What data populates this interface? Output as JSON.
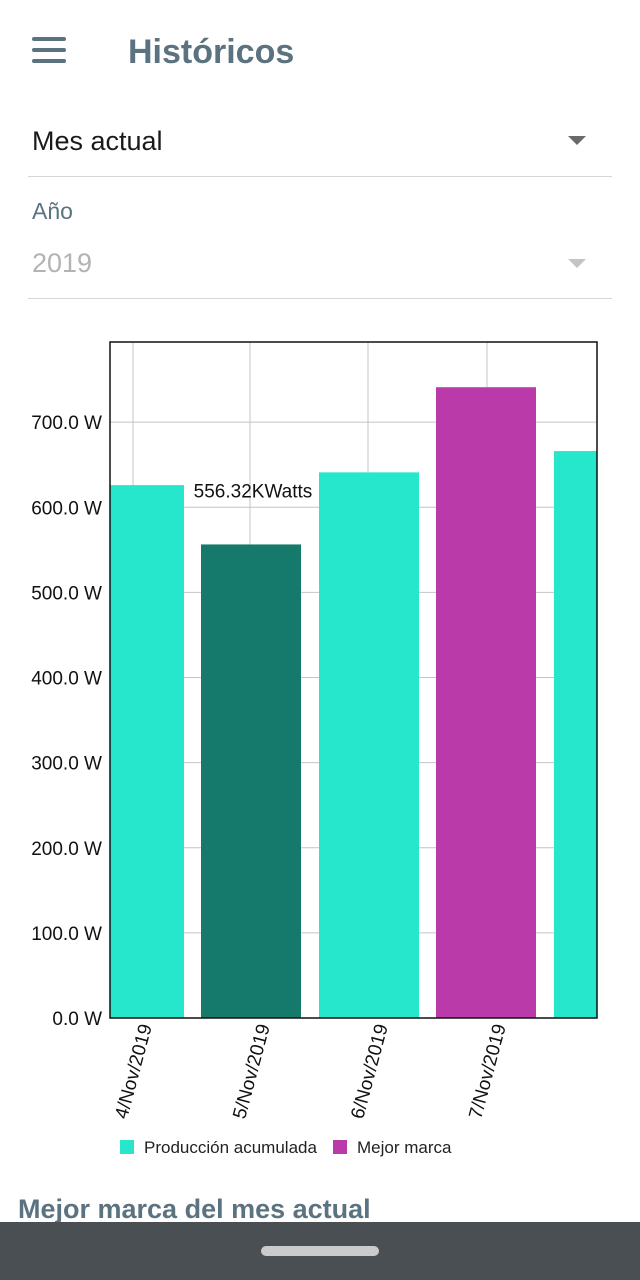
{
  "header": {
    "title": "Históricos",
    "menu_icon": "hamburger-menu-icon"
  },
  "filters": {
    "period": {
      "value": "Mes actual"
    },
    "year": {
      "label": "Año",
      "value": "2019"
    }
  },
  "chart_data": {
    "type": "bar",
    "categories": [
      "4/Nov/2019",
      "5/Nov/2019",
      "6/Nov/2019",
      "7/Nov/2019",
      ""
    ],
    "values": [
      626,
      556.32,
      641,
      741,
      666
    ],
    "bar_roles": [
      "production",
      "selected",
      "production",
      "best",
      "production"
    ],
    "y_ticks": [
      "0.0 W",
      "100.0 W",
      "200.0 W",
      "300.0 W",
      "400.0 W",
      "500.0 W",
      "600.0 W",
      "700.0 W"
    ],
    "ylim": [
      0,
      800
    ],
    "selected_label": "556.32KWatts",
    "grid": true,
    "legend_position": "bottom",
    "legend": [
      {
        "label": "Producción acumulada",
        "color": "#26e6cc"
      },
      {
        "label": "Mejor marca",
        "color": "#b93aa8"
      }
    ],
    "colors": {
      "production": "#26e6cc",
      "selected": "#157a6b",
      "best": "#b93aa8"
    }
  },
  "section": {
    "title": "Mejor marca del mes actual"
  }
}
